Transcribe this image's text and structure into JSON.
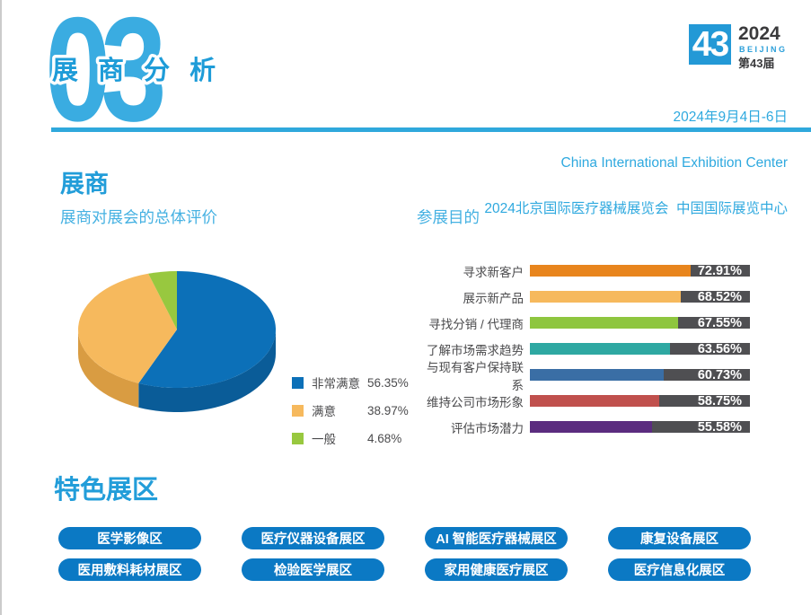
{
  "page": {
    "section_number": "03",
    "section_title": "展 商 分 析",
    "badge": {
      "number": "43",
      "year": "2024",
      "city": "BEIJING",
      "edition": "第43届"
    },
    "event": {
      "date_line": "2024年9月4日-6日",
      "venue_en": "China International Exhibition Center",
      "event_cn": "2024北京国际医疗器械展览会  中国国际展览中心"
    },
    "theme": {
      "accent_blue": "#229dd9",
      "light_blue": "#45b1e2",
      "rule_blue": "#2fa8dc",
      "badge_blue": "#2399d6",
      "button_blue": "#0b79c4",
      "text_gray": "#4b4b4d",
      "track_gray": "#4f4f52"
    }
  },
  "main": {
    "heading": "展商",
    "pie_title": "展商对展会的总体评价",
    "bar_title": "参展目的"
  },
  "featured": {
    "heading": "特色展区",
    "zones": [
      "医学影像区",
      "医疗仪器设备展区",
      "AI 智能医疗器械展区",
      "康复设备展区",
      "医用敷料耗材展区",
      "检验医学展区",
      "家用健康医疗展区",
      "医疗信息化展区"
    ]
  },
  "chart_data": [
    {
      "type": "pie",
      "style": "3d",
      "title": "展商对展会的总体评价",
      "labels": [
        "非常满意",
        "满意",
        "一般"
      ],
      "values": [
        56.35,
        38.97,
        4.68
      ],
      "value_labels": [
        "56.35%",
        "38.97%",
        "4.68%"
      ],
      "colors": [
        "#0c70b8",
        "#f6b95d",
        "#98c83f"
      ],
      "side_colors": [
        "#0a5c98",
        "#d99c42",
        "#7ea833"
      ],
      "start_angle_deg": 0,
      "direction": "clockwise",
      "legend_position": "right"
    },
    {
      "type": "bar",
      "orientation": "horizontal",
      "title": "参展目的",
      "categories": [
        "寻求新客户",
        "展示新产品",
        "寻找分销 / 代理商",
        "了解市场需求趋势",
        "与现有客户保持联系",
        "维持公司市场形象",
        "评估市场潜力"
      ],
      "values": [
        72.91,
        68.52,
        67.55,
        63.56,
        60.73,
        58.75,
        55.58
      ],
      "value_labels": [
        "72.91%",
        "68.52%",
        "67.55%",
        "63.56%",
        "60.73%",
        "58.75%",
        "55.58%"
      ],
      "bar_colors": [
        "#e8851d",
        "#f6b95d",
        "#8ec63f",
        "#2ea8a2",
        "#3a6ea5",
        "#c0504d",
        "#5b2c7f"
      ],
      "track_color": "#4f4f52",
      "xlim": [
        0,
        100
      ],
      "value_label_style": "white label inside dark track at right edge",
      "grid": false,
      "legend": false
    }
  ]
}
